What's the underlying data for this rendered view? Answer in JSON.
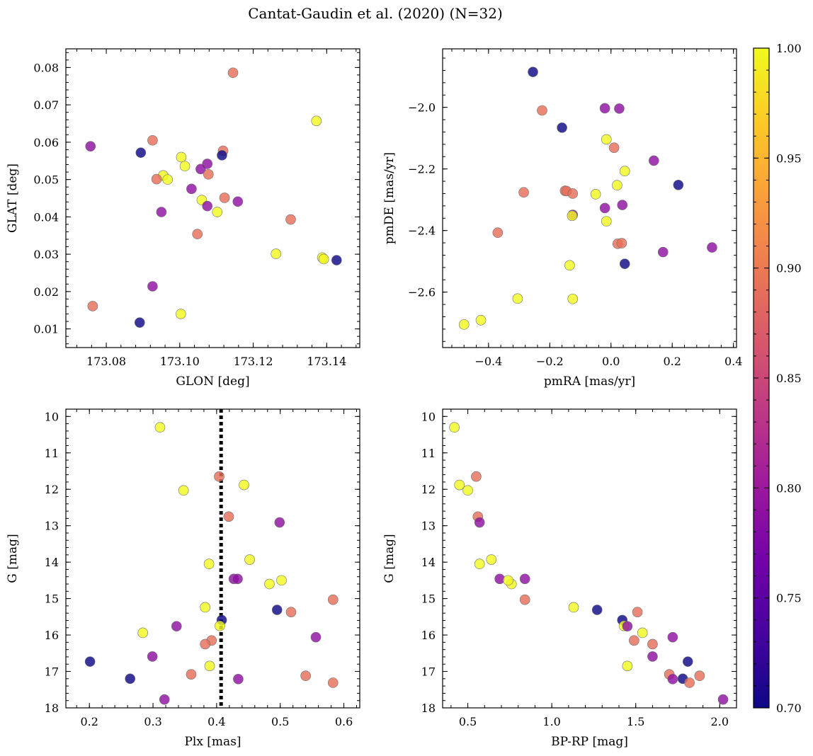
{
  "suptitle": "Cantat-Gaudin et al. (2020) (N=32)",
  "chart_data": [
    {
      "type": "scatter",
      "xlabel": "GLON [deg]",
      "ylabel": "GLAT [deg]",
      "xlim": [
        173.069,
        173.149
      ],
      "ylim": [
        0.005,
        0.085
      ],
      "yinvert": false,
      "xticks": [
        173.08,
        173.1,
        173.12,
        173.14
      ],
      "xticklabels": [
        "173.08",
        "173.10",
        "173.12",
        "173.14"
      ],
      "yticks": [
        0.01,
        0.02,
        0.03,
        0.04,
        0.05,
        0.06,
        0.07,
        0.08
      ],
      "yticklabels": [
        "0.01",
        "0.02",
        "0.03",
        "0.04",
        "0.05",
        "0.06",
        "0.07",
        "0.08"
      ],
      "points": [
        {
          "x": 173.1145,
          "y": 0.0786,
          "c": 0.89
        },
        {
          "x": 173.1372,
          "y": 0.0657,
          "c": 1.0
        },
        {
          "x": 173.0757,
          "y": 0.0589,
          "c": 0.79
        },
        {
          "x": 173.0926,
          "y": 0.0605,
          "c": 0.89
        },
        {
          "x": 173.0894,
          "y": 0.0572,
          "c": 0.7
        },
        {
          "x": 173.1118,
          "y": 0.0577,
          "c": 0.89
        },
        {
          "x": 173.1115,
          "y": 0.0565,
          "c": 0.7
        },
        {
          "x": 173.1004,
          "y": 0.056,
          "c": 1.0
        },
        {
          "x": 173.1014,
          "y": 0.0536,
          "c": 1.0
        },
        {
          "x": 173.1075,
          "y": 0.0542,
          "c": 0.79
        },
        {
          "x": 173.1057,
          "y": 0.0528,
          "c": 0.79
        },
        {
          "x": 173.1078,
          "y": 0.0514,
          "c": 0.89
        },
        {
          "x": 173.0955,
          "y": 0.0511,
          "c": 1.0
        },
        {
          "x": 173.0937,
          "y": 0.0501,
          "c": 0.89
        },
        {
          "x": 173.0967,
          "y": 0.05,
          "c": 1.0
        },
        {
          "x": 173.1032,
          "y": 0.0475,
          "c": 0.79
        },
        {
          "x": 173.106,
          "y": 0.0445,
          "c": 1.0
        },
        {
          "x": 173.1122,
          "y": 0.0451,
          "c": 0.89
        },
        {
          "x": 173.1158,
          "y": 0.0441,
          "c": 0.79
        },
        {
          "x": 173.1075,
          "y": 0.0429,
          "c": 0.79
        },
        {
          "x": 173.1102,
          "y": 0.0413,
          "c": 1.0
        },
        {
          "x": 173.095,
          "y": 0.0413,
          "c": 0.79
        },
        {
          "x": 173.1302,
          "y": 0.0393,
          "c": 0.89
        },
        {
          "x": 173.1048,
          "y": 0.0354,
          "c": 0.89
        },
        {
          "x": 173.1262,
          "y": 0.0301,
          "c": 1.0
        },
        {
          "x": 173.1388,
          "y": 0.0291,
          "c": 1.0
        },
        {
          "x": 173.1392,
          "y": 0.0287,
          "c": 1.0
        },
        {
          "x": 173.1427,
          "y": 0.0284,
          "c": 0.7
        },
        {
          "x": 173.0926,
          "y": 0.0214,
          "c": 0.79
        },
        {
          "x": 173.0763,
          "y": 0.0161,
          "c": 0.89
        },
        {
          "x": 173.1003,
          "y": 0.014,
          "c": 1.0
        },
        {
          "x": 173.0891,
          "y": 0.0117,
          "c": 0.7
        }
      ]
    },
    {
      "type": "scatter",
      "xlabel": "pmRA [mas/yr]",
      "ylabel": "pmDE [mas/yr]",
      "xlim": [
        -0.55,
        0.41
      ],
      "ylim": [
        -2.78,
        -1.81
      ],
      "yinvert": false,
      "xticks": [
        -0.4,
        -0.2,
        0.0,
        0.2,
        0.4
      ],
      "xticklabels": [
        "−0.4",
        "−0.2",
        "0.0",
        "0.2",
        "0.4"
      ],
      "yticks": [
        -2.6,
        -2.4,
        -2.2,
        -2.0
      ],
      "yticklabels": [
        "−2.6",
        "−2.4",
        "−2.2",
        "−2.0"
      ],
      "points": [
        {
          "x": -0.255,
          "y": -1.885,
          "c": 0.7
        },
        {
          "x": -0.225,
          "y": -2.01,
          "c": 0.89
        },
        {
          "x": -0.02,
          "y": -2.003,
          "c": 0.79
        },
        {
          "x": 0.027,
          "y": -2.004,
          "c": 0.79
        },
        {
          "x": -0.16,
          "y": -2.066,
          "c": 0.7
        },
        {
          "x": -0.015,
          "y": -2.104,
          "c": 1.0
        },
        {
          "x": 0.01,
          "y": -2.131,
          "c": 0.89
        },
        {
          "x": 0.14,
          "y": -2.173,
          "c": 0.79
        },
        {
          "x": 0.045,
          "y": -2.207,
          "c": 1.0
        },
        {
          "x": 0.02,
          "y": -2.253,
          "c": 1.0
        },
        {
          "x": 0.22,
          "y": -2.252,
          "c": 0.7
        },
        {
          "x": -0.285,
          "y": -2.276,
          "c": 0.89
        },
        {
          "x": -0.15,
          "y": -2.271,
          "c": 0.89
        },
        {
          "x": -0.145,
          "y": -2.272,
          "c": 0.89
        },
        {
          "x": -0.125,
          "y": -2.28,
          "c": 0.89
        },
        {
          "x": -0.05,
          "y": -2.282,
          "c": 1.0
        },
        {
          "x": -0.125,
          "y": -2.349,
          "c": 0.79
        },
        {
          "x": -0.127,
          "y": -2.352,
          "c": 1.0
        },
        {
          "x": -0.02,
          "y": -2.327,
          "c": 0.79
        },
        {
          "x": 0.037,
          "y": -2.317,
          "c": 0.79
        },
        {
          "x": -0.015,
          "y": -2.37,
          "c": 1.0
        },
        {
          "x": -0.37,
          "y": -2.407,
          "c": 0.89
        },
        {
          "x": 0.022,
          "y": -2.443,
          "c": 0.89
        },
        {
          "x": 0.035,
          "y": -2.441,
          "c": 0.89
        },
        {
          "x": 0.33,
          "y": -2.455,
          "c": 0.79
        },
        {
          "x": 0.17,
          "y": -2.47,
          "c": 0.79
        },
        {
          "x": 0.045,
          "y": -2.508,
          "c": 0.7
        },
        {
          "x": -0.135,
          "y": -2.513,
          "c": 1.0
        },
        {
          "x": -0.305,
          "y": -2.621,
          "c": 1.0
        },
        {
          "x": -0.125,
          "y": -2.622,
          "c": 1.0
        },
        {
          "x": -0.425,
          "y": -2.691,
          "c": 1.0
        },
        {
          "x": -0.48,
          "y": -2.705,
          "c": 1.0
        }
      ]
    },
    {
      "type": "scatter",
      "xlabel": "Plx [mas]",
      "ylabel": "G [mag]",
      "xlim": [
        0.163,
        0.625
      ],
      "ylim": [
        18.0,
        9.8
      ],
      "yinvert": true,
      "xticks": [
        0.2,
        0.3,
        0.4,
        0.5,
        0.6
      ],
      "xticklabels": [
        "0.2",
        "0.3",
        "0.4",
        "0.5",
        "0.6"
      ],
      "yticks": [
        10,
        11,
        12,
        13,
        14,
        15,
        16,
        17,
        18
      ],
      "yticklabels": [
        "10",
        "11",
        "12",
        "13",
        "14",
        "15",
        "16",
        "17",
        "18"
      ],
      "vline": {
        "x": 0.407,
        "style": "dotted"
      },
      "points": [
        {
          "x": 0.311,
          "y": 10.3,
          "c": 1.0
        },
        {
          "x": 0.404,
          "y": 11.65,
          "c": 0.89
        },
        {
          "x": 0.443,
          "y": 11.88,
          "c": 1.0
        },
        {
          "x": 0.348,
          "y": 12.03,
          "c": 1.0
        },
        {
          "x": 0.419,
          "y": 12.75,
          "c": 0.89
        },
        {
          "x": 0.499,
          "y": 12.91,
          "c": 0.79
        },
        {
          "x": 0.452,
          "y": 13.93,
          "c": 1.0
        },
        {
          "x": 0.388,
          "y": 14.05,
          "c": 1.0
        },
        {
          "x": 0.427,
          "y": 14.46,
          "c": 0.79
        },
        {
          "x": 0.433,
          "y": 14.46,
          "c": 0.79
        },
        {
          "x": 0.483,
          "y": 14.6,
          "c": 1.0
        },
        {
          "x": 0.502,
          "y": 14.5,
          "c": 1.0
        },
        {
          "x": 0.583,
          "y": 15.03,
          "c": 0.89
        },
        {
          "x": 0.382,
          "y": 15.24,
          "c": 1.0
        },
        {
          "x": 0.495,
          "y": 15.31,
          "c": 0.7
        },
        {
          "x": 0.517,
          "y": 15.37,
          "c": 0.89
        },
        {
          "x": 0.408,
          "y": 15.59,
          "c": 0.7
        },
        {
          "x": 0.405,
          "y": 15.75,
          "c": 1.0
        },
        {
          "x": 0.337,
          "y": 15.76,
          "c": 0.79
        },
        {
          "x": 0.284,
          "y": 15.94,
          "c": 1.0
        },
        {
          "x": 0.556,
          "y": 16.06,
          "c": 0.79
        },
        {
          "x": 0.392,
          "y": 16.15,
          "c": 0.89
        },
        {
          "x": 0.382,
          "y": 16.25,
          "c": 0.89
        },
        {
          "x": 0.299,
          "y": 16.59,
          "c": 0.79
        },
        {
          "x": 0.201,
          "y": 16.73,
          "c": 0.7
        },
        {
          "x": 0.389,
          "y": 16.85,
          "c": 1.0
        },
        {
          "x": 0.36,
          "y": 17.08,
          "c": 0.89
        },
        {
          "x": 0.54,
          "y": 17.12,
          "c": 0.89
        },
        {
          "x": 0.264,
          "y": 17.2,
          "c": 0.7
        },
        {
          "x": 0.434,
          "y": 17.21,
          "c": 0.79
        },
        {
          "x": 0.583,
          "y": 17.31,
          "c": 0.89
        },
        {
          "x": 0.318,
          "y": 17.77,
          "c": 0.79
        }
      ]
    },
    {
      "type": "scatter",
      "xlabel": "BP-RP [mag]",
      "ylabel": "G [mag]",
      "xlim": [
        0.35,
        2.1
      ],
      "ylim": [
        18.0,
        9.8
      ],
      "yinvert": true,
      "xticks": [
        0.5,
        1.0,
        1.5,
        2.0
      ],
      "xticklabels": [
        "0.5",
        "1.0",
        "1.5",
        "2.0"
      ],
      "yticks": [
        10,
        11,
        12,
        13,
        14,
        15,
        16,
        17,
        18
      ],
      "yticklabels": [
        "10",
        "11",
        "12",
        "13",
        "14",
        "15",
        "16",
        "17",
        "18"
      ],
      "points": [
        {
          "x": 0.42,
          "y": 10.3,
          "c": 1.0
        },
        {
          "x": 0.55,
          "y": 11.65,
          "c": 0.89
        },
        {
          "x": 0.45,
          "y": 11.88,
          "c": 1.0
        },
        {
          "x": 0.5,
          "y": 12.03,
          "c": 1.0
        },
        {
          "x": 0.56,
          "y": 12.75,
          "c": 0.89
        },
        {
          "x": 0.57,
          "y": 12.91,
          "c": 0.79
        },
        {
          "x": 0.64,
          "y": 13.93,
          "c": 1.0
        },
        {
          "x": 0.57,
          "y": 14.05,
          "c": 1.0
        },
        {
          "x": 0.69,
          "y": 14.46,
          "c": 0.79
        },
        {
          "x": 0.84,
          "y": 14.46,
          "c": 0.79
        },
        {
          "x": 0.76,
          "y": 14.6,
          "c": 1.0
        },
        {
          "x": 0.74,
          "y": 14.5,
          "c": 1.0
        },
        {
          "x": 0.84,
          "y": 15.03,
          "c": 0.89
        },
        {
          "x": 1.13,
          "y": 15.24,
          "c": 1.0
        },
        {
          "x": 1.27,
          "y": 15.31,
          "c": 0.7
        },
        {
          "x": 1.51,
          "y": 15.37,
          "c": 0.89
        },
        {
          "x": 1.42,
          "y": 15.59,
          "c": 0.7
        },
        {
          "x": 1.43,
          "y": 15.75,
          "c": 1.0
        },
        {
          "x": 1.45,
          "y": 15.76,
          "c": 0.79
        },
        {
          "x": 1.54,
          "y": 15.94,
          "c": 1.0
        },
        {
          "x": 1.72,
          "y": 16.06,
          "c": 0.79
        },
        {
          "x": 1.49,
          "y": 16.15,
          "c": 0.89
        },
        {
          "x": 1.6,
          "y": 16.25,
          "c": 0.89
        },
        {
          "x": 1.6,
          "y": 16.59,
          "c": 0.79
        },
        {
          "x": 1.81,
          "y": 16.73,
          "c": 0.7
        },
        {
          "x": 1.45,
          "y": 16.85,
          "c": 1.0
        },
        {
          "x": 1.7,
          "y": 17.08,
          "c": 0.89
        },
        {
          "x": 1.88,
          "y": 17.12,
          "c": 0.89
        },
        {
          "x": 1.78,
          "y": 17.2,
          "c": 0.7
        },
        {
          "x": 1.72,
          "y": 17.21,
          "c": 0.79
        },
        {
          "x": 1.82,
          "y": 17.31,
          "c": 0.89
        },
        {
          "x": 2.02,
          "y": 17.77,
          "c": 0.79
        }
      ]
    }
  ],
  "colorbar": {
    "range": [
      0.7,
      1.0
    ],
    "ticks": [
      0.7,
      0.75,
      0.8,
      0.85,
      0.9,
      0.95,
      1.0
    ],
    "ticklabels": [
      "0.70",
      "0.75",
      "0.80",
      "0.85",
      "0.90",
      "0.95",
      "1.00"
    ],
    "colormap": "plasma",
    "stops": [
      "#0d0887",
      "#46039f",
      "#7201a8",
      "#9c179e",
      "#bd3786",
      "#d8576b",
      "#ed7953",
      "#fb9f3a",
      "#fdca26",
      "#f0f921"
    ]
  }
}
